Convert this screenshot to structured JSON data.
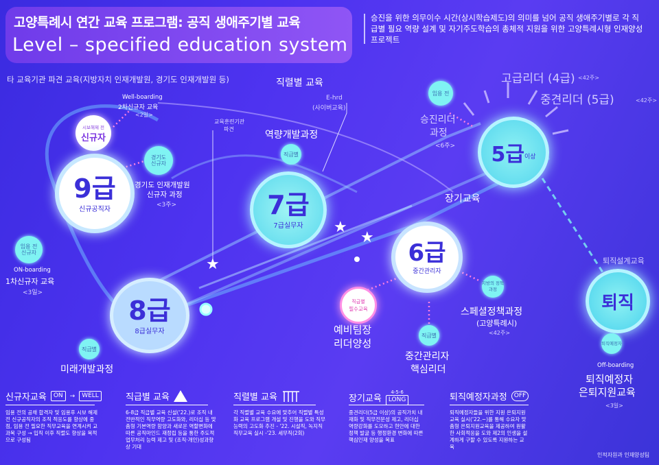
{
  "header": {
    "title_ko": "고양특례시 연간 교육 프로그램:  공직 생애주기별 교육",
    "title_en": "Level – specified education system",
    "intro": "승진을 위한 의무이수 시간(상시학습제도)의 의미를 넘어 공직 생애주기별로 각 직급별 필요 역량 설계 및 자기주도학습의 총체적 지원을 위한 고양특례시형 인재양성 프로젝트"
  },
  "labels": {
    "dispatch": "타 교육기관 파견 교육(지방자치 인재개발원, 경기도 인재개발원 등)",
    "rank_edu": "직렬별 교육",
    "ehrd_1": "E-hrd",
    "ehrd_2": "(사이버교육)",
    "inst_1": "교육훈련기관",
    "inst_2": "파견",
    "competency": "역량개발과정",
    "competency_dot": "직급별",
    "wellboarding_1": "Well-boarding",
    "wellboarding_2": "2차신규자 교육",
    "wellboarding_3": "<2일>",
    "newbie_small": "시보해제 전",
    "newbie": "신규자",
    "gg_dot_1": "경기도",
    "gg_dot_2": "신규자",
    "gg_1": "경기도 인재개발원",
    "gg_2": "신규자 과정",
    "gg_3": "<3주>",
    "nine": "9급",
    "nine_sub": "신규공직자",
    "onb_dot_1": "임용 전",
    "onb_dot_2": "신규자",
    "onb_1": "ON-boarding",
    "onb_2": "1차신규자 교육",
    "onb_3": "<3일>",
    "eight": "8급",
    "eight_sub": "8급실무자",
    "future_dot": "직급별",
    "future": "미래개발과정",
    "seven": "7급",
    "seven_sub": "7급실무자",
    "six": "6급",
    "six_sub": "중간관리자",
    "five": "5급",
    "five_suffix": "이상",
    "promo_dot": "임용 전",
    "promo_1": "승진리더",
    "promo_2": "과정",
    "promo_3": "<6주>",
    "senior": "고급리더 (4급)",
    "senior_weeks": "<42주>",
    "mid": "중견리더 (5급)",
    "mid_weeks": "<42주>",
    "long_edu": "장기교육",
    "retire_design": "퇴직설계교육",
    "retire": "퇴직",
    "retire_dot": "퇴직예정자",
    "offb_1": "Off-boarding",
    "offb_2": "퇴직예정자",
    "offb_3": "은퇴지원교육",
    "offb_4": "<3일>",
    "leader_dot_1": "직급별",
    "leader_dot_2": "필수교육",
    "leader_1": "예비팀장",
    "leader_2": "리더양성",
    "core_dot": "직급별",
    "core_1": "중간관리자",
    "core_2": "핵심리더",
    "spec_dot": "지방의 정책과정",
    "spec_1": "스페셜정책과정",
    "spec_2": "(고양특례시)",
    "spec_3": "<42주>"
  },
  "sections": [
    {
      "title": "신규자교육",
      "tag_a": "ON",
      "tag_b": "WELL",
      "body": "임용 전의 공채 합격자 및 임용후 시보 해제 전 신규공직자의 조직 적응도를 향상에 중점, 임용 전 필요한 직무교육을 연계시켜 교과목 구성 → 입직 이후 직렬도 향상을 목적으로 구성됨"
    },
    {
      "title": "직급별 교육",
      "body": "6-8급 직급별 교육 신설('22.)로 조직 내 전반적인 직무역량 고도화와, 리더십 등 맞춤형 기본역량 함양과 새로운 역할변화에 따른 공직마인드 재정립 등을 통한 주도적 업무처리 능력 제고 및 (조직·개인)성과향상 기대"
    },
    {
      "title": "직렬별 교육",
      "body": "각 직렬별 교육 수요에 맞추어 직렬별 특성화 교육 프로그램 개설 및 진행을 도와 직무능력의 고도화 추진 - '22. 시설직, 녹지직 직무교육 실시 -'23. 세무직(2회)"
    },
    {
      "title": "장기교육",
      "tag_top": "4-5-6",
      "tag_b": "LONG",
      "body": "중견리더(5급 이상)의 공직가치 내재화 및 직무전문성 제고, 리더십 역량강화를 도모하고 현안에 대한 정책 발굴 등 행정환경 변화에 따른 핵심인재 양성을 목표"
    },
    {
      "title": "퇴직예정자과정",
      "tag_b": "OFF",
      "body": "퇴직예정자들을 위한 지원 은퇴지원교육 실시('22.~)를 통해 수요자 맞춤형 은퇴지원교육을 제공하여 원활한 사회적응을 도와 제2의 인생을 설계하게 구할 수 있도록 지원하는 교육"
    }
  ],
  "footer": "인적자원과  인재양성팀",
  "colors": {
    "background": "#4e33f0",
    "accent": "#7ff3f3",
    "title_box": "#7e48ef"
  }
}
